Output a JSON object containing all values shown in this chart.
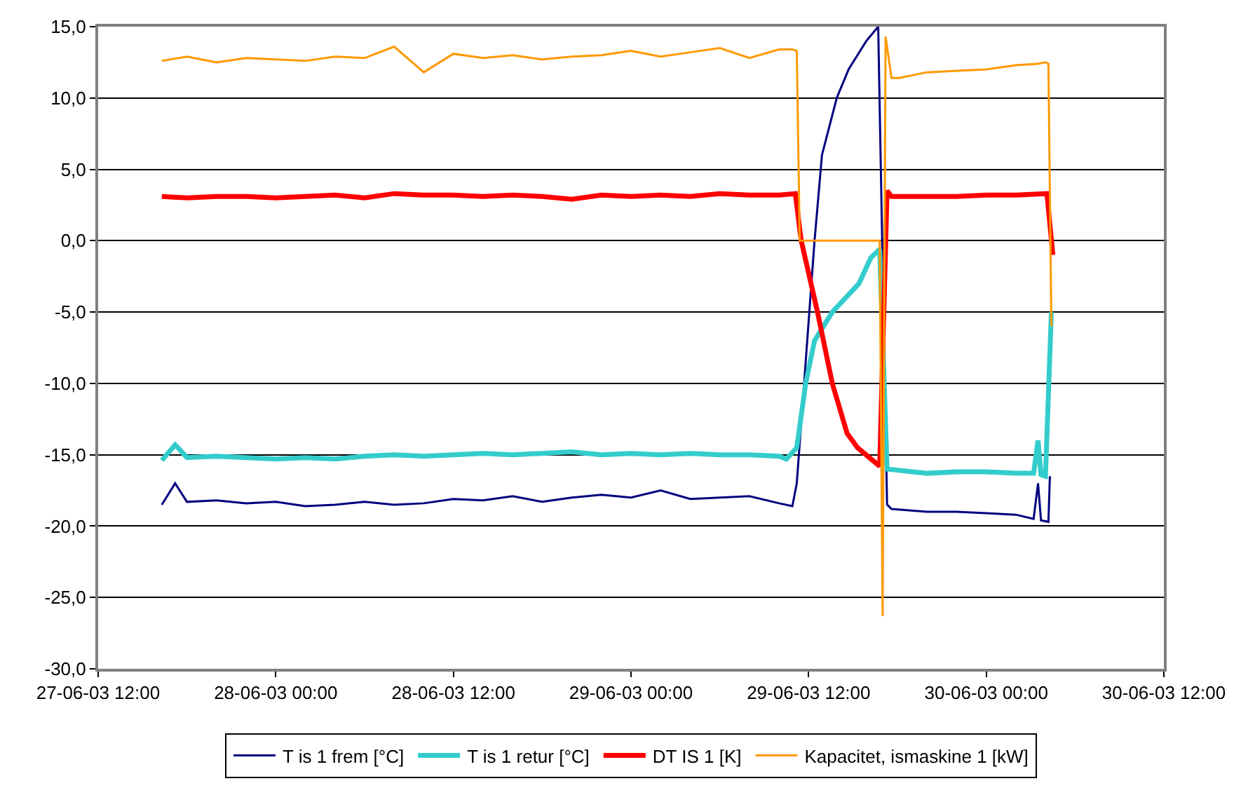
{
  "chart_data": {
    "type": "line",
    "xlim": [
      "--06-27T12:00",
      "--06-30T12:00"
    ],
    "xticks": [
      {
        "value": "--06-27T12:00",
        "label": "27-06-03 12:00"
      },
      {
        "value": "--06-28T00:00",
        "label": "28-06-03 00:00"
      },
      {
        "value": "--06-28T12:00",
        "label": "28-06-03 12:00"
      },
      {
        "value": "--06-29T00:00",
        "label": "29-06-03 00:00"
      },
      {
        "value": "--06-29T12:00",
        "label": "29-06-03 12:00"
      },
      {
        "value": "--06-30T00:00",
        "label": "30-06-03 00:00"
      },
      {
        "value": "--06-30T12:00",
        "label": "30-06-03 12:00"
      }
    ],
    "ylim": [
      -30,
      15
    ],
    "yticks": [
      {
        "value": 15,
        "label": "15,0"
      },
      {
        "value": 10,
        "label": "10,0"
      },
      {
        "value": 5,
        "label": "5,0"
      },
      {
        "value": 0,
        "label": "0,0"
      },
      {
        "value": -5,
        "label": "-5,0"
      },
      {
        "value": -10,
        "label": "-10,0"
      },
      {
        "value": -15,
        "label": "-15,0"
      },
      {
        "value": -20,
        "label": "-20,0"
      },
      {
        "value": -25,
        "label": "-25,0"
      },
      {
        "value": -30,
        "label": "-30,0"
      }
    ],
    "grid": "y",
    "legend": "bottom",
    "marker": "none",
    "line_style": "solid",
    "series": [
      {
        "name": "T is 1 frem [°C]",
        "color": "#000080",
        "x": [
          "--06-27T16:18",
          "--06-27T17:12",
          "--06-27T18:00",
          "--06-27T20:00",
          "--06-27T22:00",
          "--06-28T00:00",
          "--06-28T02:00",
          "--06-28T04:00",
          "--06-28T06:00",
          "--06-28T08:00",
          "--06-28T10:00",
          "--06-28T12:00",
          "--06-28T14:00",
          "--06-28T16:00",
          "--06-28T18:00",
          "--06-28T20:00",
          "--06-28T22:00",
          "--06-29T00:00",
          "--06-29T02:00",
          "--06-29T04:00",
          "--06-29T06:00",
          "--06-29T08:00",
          "--06-29T10:00",
          "--06-29T10:54",
          "--06-29T11:12",
          "--06-29T12:24",
          "--06-29T12:54",
          "--06-29T13:54",
          "--06-29T14:42",
          "--06-29T15:54",
          "--06-29T16:42",
          "--06-29T17:18",
          "--06-29T17:36",
          "--06-29T20:00",
          "--06-29T22:00",
          "--06-30T00:00",
          "--06-30T02:00",
          "--06-30T03:12",
          "--06-30T03:30",
          "--06-30T03:42",
          "--06-30T04:12",
          "--06-30T04:18"
        ],
        "values": [
          -18.5,
          -17.0,
          -18.3,
          -18.2,
          -18.4,
          -18.3,
          -18.6,
          -18.5,
          -18.3,
          -18.5,
          -18.4,
          -18.1,
          -18.2,
          -17.9,
          -18.3,
          -18.0,
          -17.8,
          -18.0,
          -17.5,
          -18.1,
          -18.0,
          -17.9,
          -18.4,
          -18.6,
          -17.0,
          0,
          6,
          10,
          12,
          14,
          15,
          -18.5,
          -18.8,
          -19.0,
          -19.0,
          -19.1,
          -19.2,
          -19.5,
          -17.0,
          -19.6,
          -19.7,
          -16.5
        ]
      },
      {
        "name": "T is 1 retur [°C]",
        "color": "#33cccc",
        "x": [
          "--06-27T16:18",
          "--06-27T17:12",
          "--06-27T18:00",
          "--06-27T20:00",
          "--06-27T22:00",
          "--06-28T00:00",
          "--06-28T02:00",
          "--06-28T04:00",
          "--06-28T06:00",
          "--06-28T08:00",
          "--06-28T10:00",
          "--06-28T12:00",
          "--06-28T14:00",
          "--06-28T16:00",
          "--06-28T18:00",
          "--06-28T20:00",
          "--06-28T22:00",
          "--06-29T00:00",
          "--06-29T02:00",
          "--06-29T04:00",
          "--06-29T06:00",
          "--06-29T08:00",
          "--06-29T10:00",
          "--06-29T10:30",
          "--06-29T11:12",
          "--06-29T11:48",
          "--06-29T12:24",
          "--06-29T13:36",
          "--06-29T15:24",
          "--06-29T16:12",
          "--06-29T16:48",
          "--06-29T17:18",
          "--06-29T20:00",
          "--06-29T22:00",
          "--06-30T00:00",
          "--06-30T02:00",
          "--06-30T03:12",
          "--06-30T03:30",
          "--06-30T03:42",
          "--06-30T04:00",
          "--06-30T04:24"
        ],
        "values": [
          -15.4,
          -14.3,
          -15.2,
          -15.1,
          -15.2,
          -15.3,
          -15.2,
          -15.3,
          -15.1,
          -15.0,
          -15.1,
          -15.0,
          -14.9,
          -15.0,
          -14.9,
          -14.8,
          -15.0,
          -14.9,
          -15.0,
          -14.9,
          -15.0,
          -15.0,
          -15.1,
          -15.3,
          -14.5,
          -10,
          -7,
          -5,
          -3,
          -1.2,
          -0.6,
          -16.0,
          -16.3,
          -16.2,
          -16.2,
          -16.3,
          -16.3,
          -14.0,
          -16.4,
          -16.5,
          -5.0
        ]
      },
      {
        "name": "DT IS 1 [K]",
        "color": "#ff0000",
        "x": [
          "--06-27T16:18",
          "--06-27T18:00",
          "--06-27T20:00",
          "--06-27T22:00",
          "--06-28T00:00",
          "--06-28T02:00",
          "--06-28T04:00",
          "--06-28T06:00",
          "--06-28T08:00",
          "--06-28T10:00",
          "--06-28T12:00",
          "--06-28T14:00",
          "--06-28T16:00",
          "--06-28T18:00",
          "--06-28T20:00",
          "--06-28T22:00",
          "--06-29T00:00",
          "--06-29T02:00",
          "--06-29T04:00",
          "--06-29T06:00",
          "--06-29T08:00",
          "--06-29T10:00",
          "--06-29T11:06",
          "--06-29T11:30",
          "--06-29T12:36",
          "--06-29T13:36",
          "--06-29T14:36",
          "--06-29T15:18",
          "--06-29T16:48",
          "--06-29T17:18",
          "--06-29T17:36",
          "--06-29T20:00",
          "--06-29T22:00",
          "--06-30T00:00",
          "--06-30T02:00",
          "--06-30T04:06",
          "--06-30T04:30"
        ],
        "values": [
          3.1,
          3.0,
          3.1,
          3.1,
          3.0,
          3.1,
          3.2,
          3.0,
          3.3,
          3.2,
          3.2,
          3.1,
          3.2,
          3.1,
          2.9,
          3.2,
          3.1,
          3.2,
          3.1,
          3.3,
          3.2,
          3.2,
          3.3,
          0,
          -5,
          -10,
          -13.5,
          -14.5,
          -15.8,
          3.5,
          3.1,
          3.1,
          3.1,
          3.2,
          3.2,
          3.3,
          -1.0
        ]
      },
      {
        "name": "Kapacitet, ismaskine 1 [kW]",
        "color": "#ff9900",
        "x": [
          "--06-27T16:18",
          "--06-27T18:00",
          "--06-27T20:00",
          "--06-27T22:00",
          "--06-28T00:00",
          "--06-28T02:00",
          "--06-28T04:00",
          "--06-28T06:00",
          "--06-28T08:00",
          "--06-28T10:00",
          "--06-28T12:00",
          "--06-28T14:00",
          "--06-28T16:00",
          "--06-28T18:00",
          "--06-28T20:00",
          "--06-28T22:00",
          "--06-29T00:00",
          "--06-29T02:00",
          "--06-29T04:00",
          "--06-29T06:00",
          "--06-29T08:00",
          "--06-29T10:00",
          "--06-29T10:54",
          "--06-29T11:12",
          "--06-29T11:24",
          "--06-29T16:48",
          "--06-29T17:00",
          "--06-29T17:12",
          "--06-29T17:36",
          "--06-29T18:06",
          "--06-29T20:00",
          "--06-29T22:00",
          "--06-30T00:00",
          "--06-30T02:00",
          "--06-30T03:30",
          "--06-30T04:00",
          "--06-30T04:12",
          "--06-30T04:24"
        ],
        "values": [
          12.6,
          12.9,
          12.5,
          12.8,
          12.7,
          12.6,
          12.9,
          12.8,
          13.6,
          11.8,
          13.1,
          12.8,
          13.0,
          12.7,
          12.9,
          13.0,
          13.3,
          12.9,
          13.2,
          13.5,
          12.8,
          13.4,
          13.4,
          13.3,
          0,
          0,
          -26.3,
          14.3,
          11.4,
          11.4,
          11.8,
          11.9,
          12.0,
          12.3,
          12.4,
          12.5,
          12.4,
          -6.0
        ]
      }
    ]
  }
}
